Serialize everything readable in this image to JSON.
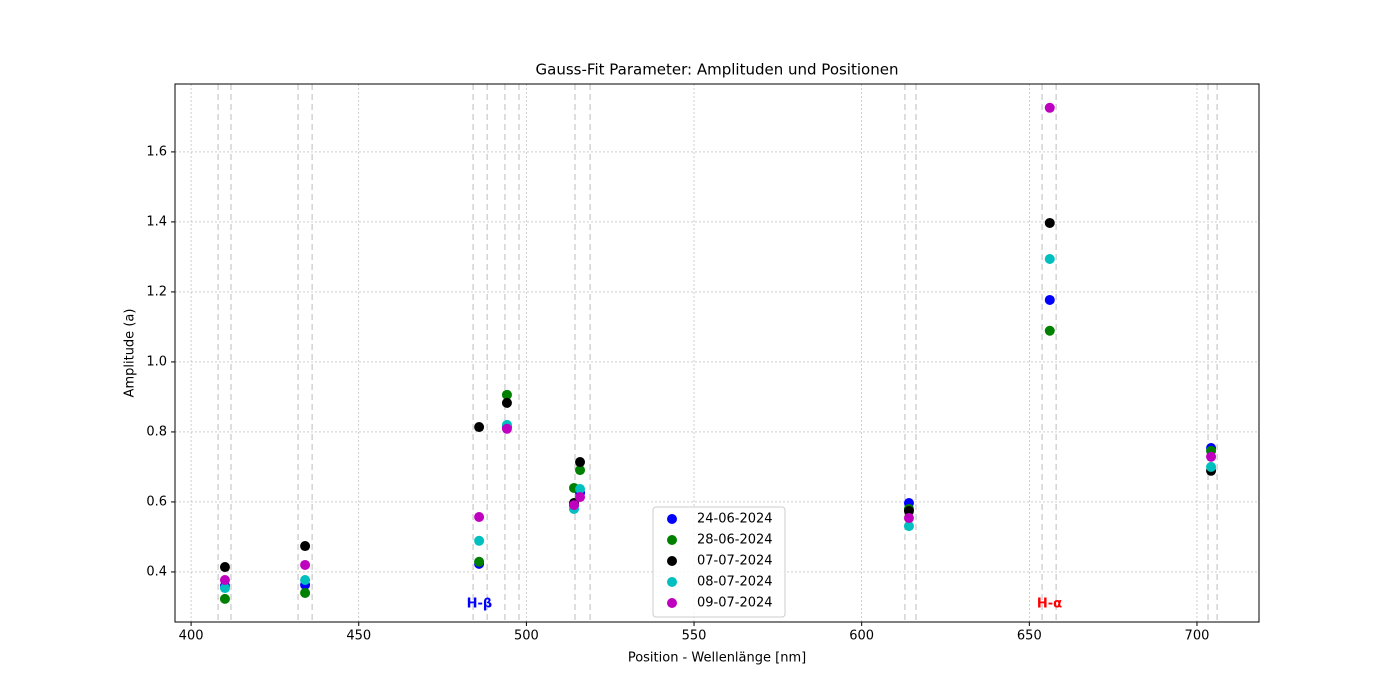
{
  "chart_data": {
    "type": "scatter",
    "title": "Gauss-Fit Parameter: Amplituden und Positionen",
    "x_label": "Position - Wellenlänge [nm]",
    "y_label": "Amplitude (a)",
    "x": [
      410.1,
      434.0,
      485.9,
      494.2,
      514.2,
      516.0,
      614.1,
      656.1,
      704.2
    ],
    "series": [
      {
        "name": "24-06-2024",
        "color": "#0000ff",
        "values": [
          0.36,
          0.363,
          0.423,
          0.815,
          0.591,
          0.626,
          0.597,
          1.177,
          0.754
        ]
      },
      {
        "name": "28-06-2024",
        "color": "#008000",
        "values": [
          0.323,
          0.34,
          0.429,
          0.906,
          0.64,
          0.691,
          0.58,
          1.089,
          0.746
        ]
      },
      {
        "name": "07-07-2024",
        "color": "#000000",
        "values": [
          0.414,
          0.474,
          0.814,
          0.883,
          0.597,
          0.714,
          0.574,
          1.397,
          0.689
        ]
      },
      {
        "name": "08-07-2024",
        "color": "#00bfbf",
        "values": [
          0.354,
          0.377,
          0.489,
          0.82,
          0.58,
          0.637,
          0.531,
          1.294,
          0.7
        ]
      },
      {
        "name": "09-07-2024",
        "color": "#bf00bf",
        "values": [
          0.377,
          0.42,
          0.557,
          0.809,
          0.591,
          0.614,
          0.554,
          1.726,
          0.729
        ]
      }
    ],
    "vlines": [
      408.05,
      411.9,
      431.9,
      436.1,
      484.1,
      488.3,
      493.6,
      497.8,
      514.5,
      519.0,
      612.9,
      616.2,
      653.8,
      658.0,
      703.3,
      706.0
    ],
    "annotations": [
      {
        "text": "H-β",
        "x": 486,
        "y": 0.309,
        "color": "#0000ff"
      },
      {
        "text": "H-α",
        "x": 656,
        "y": 0.309,
        "color": "#ff0000"
      }
    ],
    "xlim": [
      395.2,
      718.5
    ],
    "ylim": [
      0.257,
      1.794
    ],
    "xticks": [
      400,
      450,
      500,
      550,
      600,
      650,
      700
    ],
    "yticks": [
      0.4,
      0.6,
      0.8,
      {
        "value": 1.0,
        "label": "1.0"
      },
      1.2,
      1.4,
      1.6
    ],
    "grid": true
  }
}
